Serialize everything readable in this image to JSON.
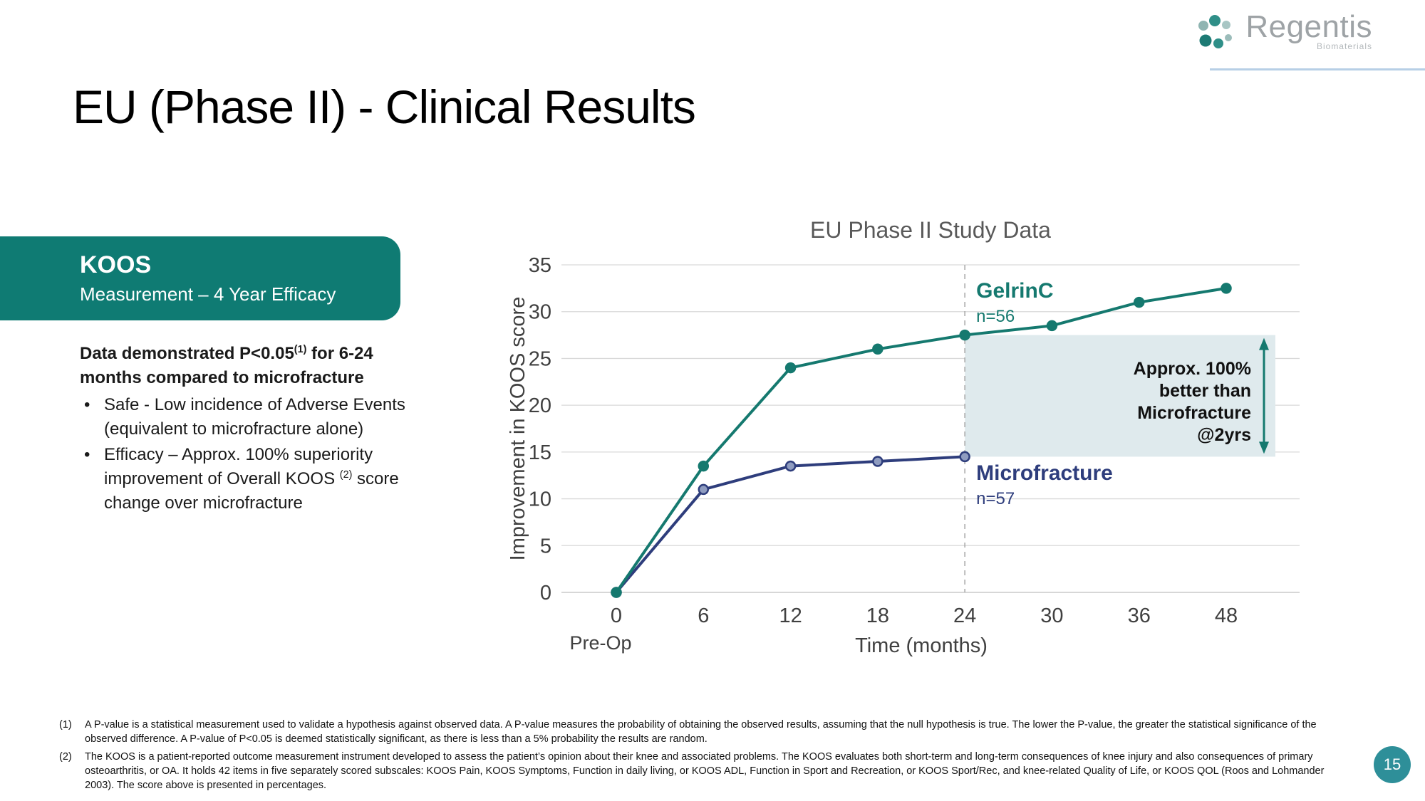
{
  "slide": {
    "title": "EU (Phase II) - Clinical Results",
    "page_number": "15"
  },
  "logo": {
    "name": "Regentis",
    "subtitle": "Biomaterials"
  },
  "koos_banner": {
    "title": "KOOS",
    "subtitle": "Measurement – 4 Year Efficacy"
  },
  "body": {
    "heading": {
      "pre": "Data demonstrated P<0.05",
      "sup": "(1)",
      "post": " for 6-24 months compared to microfracture"
    },
    "bullets": [
      {
        "pre": "Safe - Low incidence of Adverse Events (equivalent to microfracture alone)",
        "sup": "",
        "post": ""
      },
      {
        "pre": "Efficacy – Approx. 100% superiority improvement of Overall KOOS ",
        "sup": "(2)",
        "post": " score change over microfracture"
      }
    ]
  },
  "colors": {
    "teal": "#0f7b73",
    "chart_title": "#595959",
    "axis_text": "#404040",
    "grid": "#d9d9d9",
    "axis": "#bfbfbf",
    "highlight": "#dfeaed",
    "divider": "#a6a6a6",
    "annotation_text": "#111111",
    "page_badge": "#2e8f99",
    "logo_gray": "#9ea3a6",
    "logo_underline": "#b7cfe6"
  },
  "chart_data": {
    "type": "line",
    "title": "EU Phase II Study Data",
    "xlabel": "Time (months)",
    "ylabel": "Improvement in KOOS score",
    "x_ticks": [
      "0",
      "6",
      "12",
      "18",
      "24",
      "30",
      "36",
      "48"
    ],
    "x_sub_label": "Pre-Op",
    "y_ticks": [
      0,
      5,
      10,
      15,
      20,
      25,
      30,
      35
    ],
    "ylim": [
      0,
      35
    ],
    "grid": true,
    "legend_position": "inline-labels",
    "divider_x": "24",
    "series": [
      {
        "name": "GelrinC",
        "n_label": "n=56",
        "color": "#15796f",
        "values": [
          0,
          13.5,
          24,
          26,
          27.5,
          28.5,
          31,
          32.5
        ]
      },
      {
        "name": "Microfracture",
        "n_label": "n=57",
        "color": "#2e3d7c",
        "marker_fill": "#8f9cc0",
        "values": [
          0,
          11,
          13.5,
          14,
          14.5
        ]
      }
    ],
    "annotation_lines": [
      "Approx. 100%",
      "better than",
      "Microfracture",
      "@2yrs"
    ]
  },
  "footnotes": [
    {
      "marker": "(1)",
      "text": "A P-value is a statistical measurement used to validate a hypothesis against observed data. A P-value measures the probability of obtaining the observed results, assuming that the null hypothesis is true. The lower the P-value, the greater the statistical significance of the observed difference. A P-value of P<0.05 is deemed statistically significant, as there is less than a 5% probability the results are random."
    },
    {
      "marker": "(2)",
      "text": "The KOOS is a patient-reported outcome measurement instrument developed to assess the patient’s opinion about their knee and associated problems. The KOOS evaluates both short-term and long-term consequences of knee injury and also consequences of primary osteoarthritis, or OA. It holds 42 items in five separately scored subscales: KOOS Pain, KOOS Symptoms, Function in daily living, or KOOS ADL, Function in Sport and Recreation, or KOOS Sport/Rec, and knee-related Quality of Life, or KOOS QOL (Roos and Lohmander 2003). The score above is presented in percentages."
    }
  ]
}
